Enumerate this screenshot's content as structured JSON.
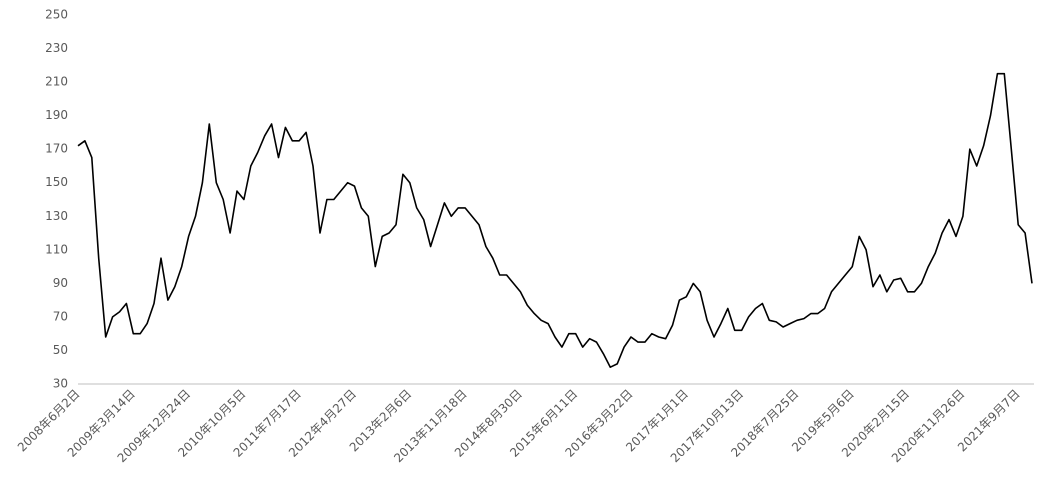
{
  "chart_data": {
    "type": "line",
    "color": "#000000",
    "categories": [
      "2008年6月2日",
      null,
      null,
      null,
      null,
      null,
      null,
      null,
      "2009年3月14日",
      null,
      null,
      null,
      null,
      null,
      null,
      null,
      "2009年12月24日",
      null,
      null,
      null,
      null,
      null,
      null,
      null,
      "2010年10月5日",
      null,
      null,
      null,
      null,
      null,
      null,
      null,
      "2011年7月17日",
      null,
      null,
      null,
      null,
      null,
      null,
      null,
      "2012年4月27日",
      null,
      null,
      null,
      null,
      null,
      null,
      null,
      "2013年2月6日",
      null,
      null,
      null,
      null,
      null,
      null,
      null,
      "2013年11月18日",
      null,
      null,
      null,
      null,
      null,
      null,
      null,
      "2014年8月30日",
      null,
      null,
      null,
      null,
      null,
      null,
      null,
      "2015年6月11日",
      null,
      null,
      null,
      null,
      null,
      null,
      null,
      "2016年3月22日",
      null,
      null,
      null,
      null,
      null,
      null,
      null,
      "2017年1月1日",
      null,
      null,
      null,
      null,
      null,
      null,
      null,
      "2017年10月13日",
      null,
      null,
      null,
      null,
      null,
      null,
      null,
      "2018年7月25日",
      null,
      null,
      null,
      null,
      null,
      null,
      null,
      "2019年5月6日",
      null,
      null,
      null,
      null,
      null,
      null,
      null,
      "2020年2月15日",
      null,
      null,
      null,
      null,
      null,
      null,
      null,
      "2020年11月26日",
      null,
      null,
      null,
      null,
      null,
      null,
      null,
      "2021年9月7日",
      null,
      null
    ],
    "values": [
      172,
      175,
      165,
      105,
      58,
      70,
      73,
      78,
      60,
      60,
      66,
      78,
      105,
      80,
      88,
      100,
      118,
      130,
      150,
      185,
      150,
      140,
      120,
      145,
      140,
      160,
      168,
      178,
      185,
      165,
      183,
      175,
      175,
      180,
      160,
      120,
      140,
      140,
      145,
      150,
      148,
      135,
      130,
      100,
      118,
      120,
      125,
      155,
      150,
      135,
      128,
      112,
      125,
      138,
      130,
      135,
      135,
      130,
      125,
      112,
      105,
      95,
      95,
      90,
      85,
      77,
      72,
      68,
      66,
      58,
      52,
      60,
      60,
      52,
      57,
      55,
      48,
      40,
      42,
      52,
      58,
      55,
      55,
      60,
      58,
      57,
      65,
      80,
      82,
      90,
      85,
      68,
      58,
      66,
      75,
      62,
      62,
      70,
      75,
      78,
      68,
      67,
      64,
      66,
      68,
      69,
      72,
      72,
      75,
      85,
      90,
      95,
      100,
      118,
      110,
      88,
      95,
      85,
      92,
      93,
      85,
      85,
      90,
      100,
      108,
      120,
      128,
      118,
      130,
      170,
      160,
      172,
      190,
      215,
      215,
      170,
      125,
      120,
      90
    ],
    "ylim": [
      30,
      250
    ],
    "yticks": [
      30,
      50,
      70,
      90,
      110,
      130,
      150,
      170,
      190,
      210,
      230,
      250
    ]
  }
}
